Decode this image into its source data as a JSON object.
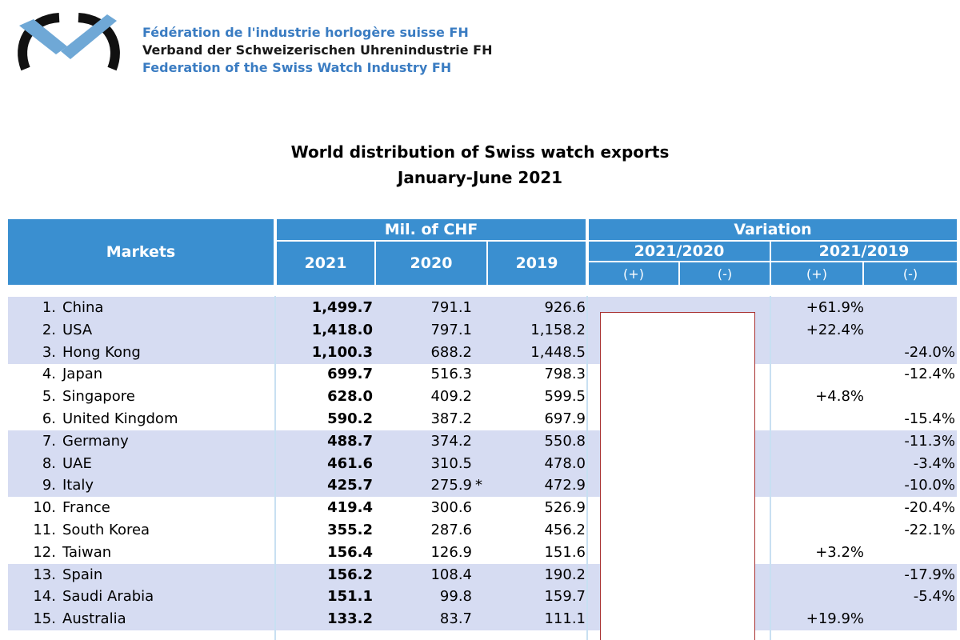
{
  "org": {
    "line_fr": "Fédération de l'industrie horlogère suisse FH",
    "line_de": "Verband der Schweizerischen Uhrenindustrie FH",
    "line_en": "Federation of the Swiss Watch Industry FH"
  },
  "title": {
    "line1": "World distribution of Swiss watch exports",
    "line2": "January-June 2021"
  },
  "header": {
    "markets": "Markets",
    "mil_chf": "Mil. of CHF",
    "variation": "Variation",
    "y2021": "2021",
    "y2020": "2020",
    "y2019": "2019",
    "v2120": "2021/2020",
    "v2119": "2021/2019",
    "plus_a": "(+)",
    "minus_a": "(-)",
    "plus_b": "(+)",
    "minus_b": "(-)"
  },
  "rows": [
    {
      "rank": "1.",
      "market": "China",
      "v2021": "1,499.7",
      "v2020": "791.1",
      "note": "",
      "v2019": "926.6",
      "plus19": "+61.9%",
      "minus19": ""
    },
    {
      "rank": "2.",
      "market": "USA",
      "v2021": "1,418.0",
      "v2020": "797.1",
      "note": "",
      "v2019": "1,158.2",
      "plus19": "+22.4%",
      "minus19": ""
    },
    {
      "rank": "3.",
      "market": "Hong Kong",
      "v2021": "1,100.3",
      "v2020": "688.2",
      "note": "",
      "v2019": "1,448.5",
      "plus19": "",
      "minus19": "-24.0%"
    },
    {
      "rank": "4.",
      "market": "Japan",
      "v2021": "699.7",
      "v2020": "516.3",
      "note": "",
      "v2019": "798.3",
      "plus19": "",
      "minus19": "-12.4%"
    },
    {
      "rank": "5.",
      "market": "Singapore",
      "v2021": "628.0",
      "v2020": "409.2",
      "note": "",
      "v2019": "599.5",
      "plus19": "+4.8%",
      "minus19": ""
    },
    {
      "rank": "6.",
      "market": "United Kingdom",
      "v2021": "590.2",
      "v2020": "387.2",
      "note": "",
      "v2019": "697.9",
      "plus19": "",
      "minus19": "-15.4%"
    },
    {
      "rank": "7.",
      "market": "Germany",
      "v2021": "488.7",
      "v2020": "374.2",
      "note": "",
      "v2019": "550.8",
      "plus19": "",
      "minus19": "-11.3%"
    },
    {
      "rank": "8.",
      "market": "UAE",
      "v2021": "461.6",
      "v2020": "310.5",
      "note": "",
      "v2019": "478.0",
      "plus19": "",
      "minus19": "-3.4%"
    },
    {
      "rank": "9.",
      "market": "Italy",
      "v2021": "425.7",
      "v2020": "275.9",
      "note": "*",
      "v2019": "472.9",
      "plus19": "",
      "minus19": "-10.0%"
    },
    {
      "rank": "10.",
      "market": "France",
      "v2021": "419.4",
      "v2020": "300.6",
      "note": "",
      "v2019": "526.9",
      "plus19": "",
      "minus19": "-20.4%"
    },
    {
      "rank": "11.",
      "market": "South Korea",
      "v2021": "355.2",
      "v2020": "287.6",
      "note": "",
      "v2019": "456.2",
      "plus19": "",
      "minus19": "-22.1%"
    },
    {
      "rank": "12.",
      "market": "Taiwan",
      "v2021": "156.4",
      "v2020": "126.9",
      "note": "",
      "v2019": "151.6",
      "plus19": "+3.2%",
      "minus19": ""
    },
    {
      "rank": "13.",
      "market": "Spain",
      "v2021": "156.2",
      "v2020": "108.4",
      "note": "",
      "v2019": "190.2",
      "plus19": "",
      "minus19": "-17.9%"
    },
    {
      "rank": "14.",
      "market": "Saudi Arabia",
      "v2021": "151.1",
      "v2020": "99.8",
      "note": "",
      "v2019": "159.7",
      "plus19": "",
      "minus19": "-5.4%"
    },
    {
      "rank": "15.",
      "market": "Australia",
      "v2021": "133.2",
      "v2020": "83.7",
      "note": "",
      "v2019": "111.1",
      "plus19": "+19.9%",
      "minus19": ""
    }
  ],
  "colors": {
    "header_blue": "#3a8fd0",
    "row_shade": "#d6dcf2",
    "logo_blue": "#6fa8d6",
    "org_blue": "#3a7cc2"
  }
}
